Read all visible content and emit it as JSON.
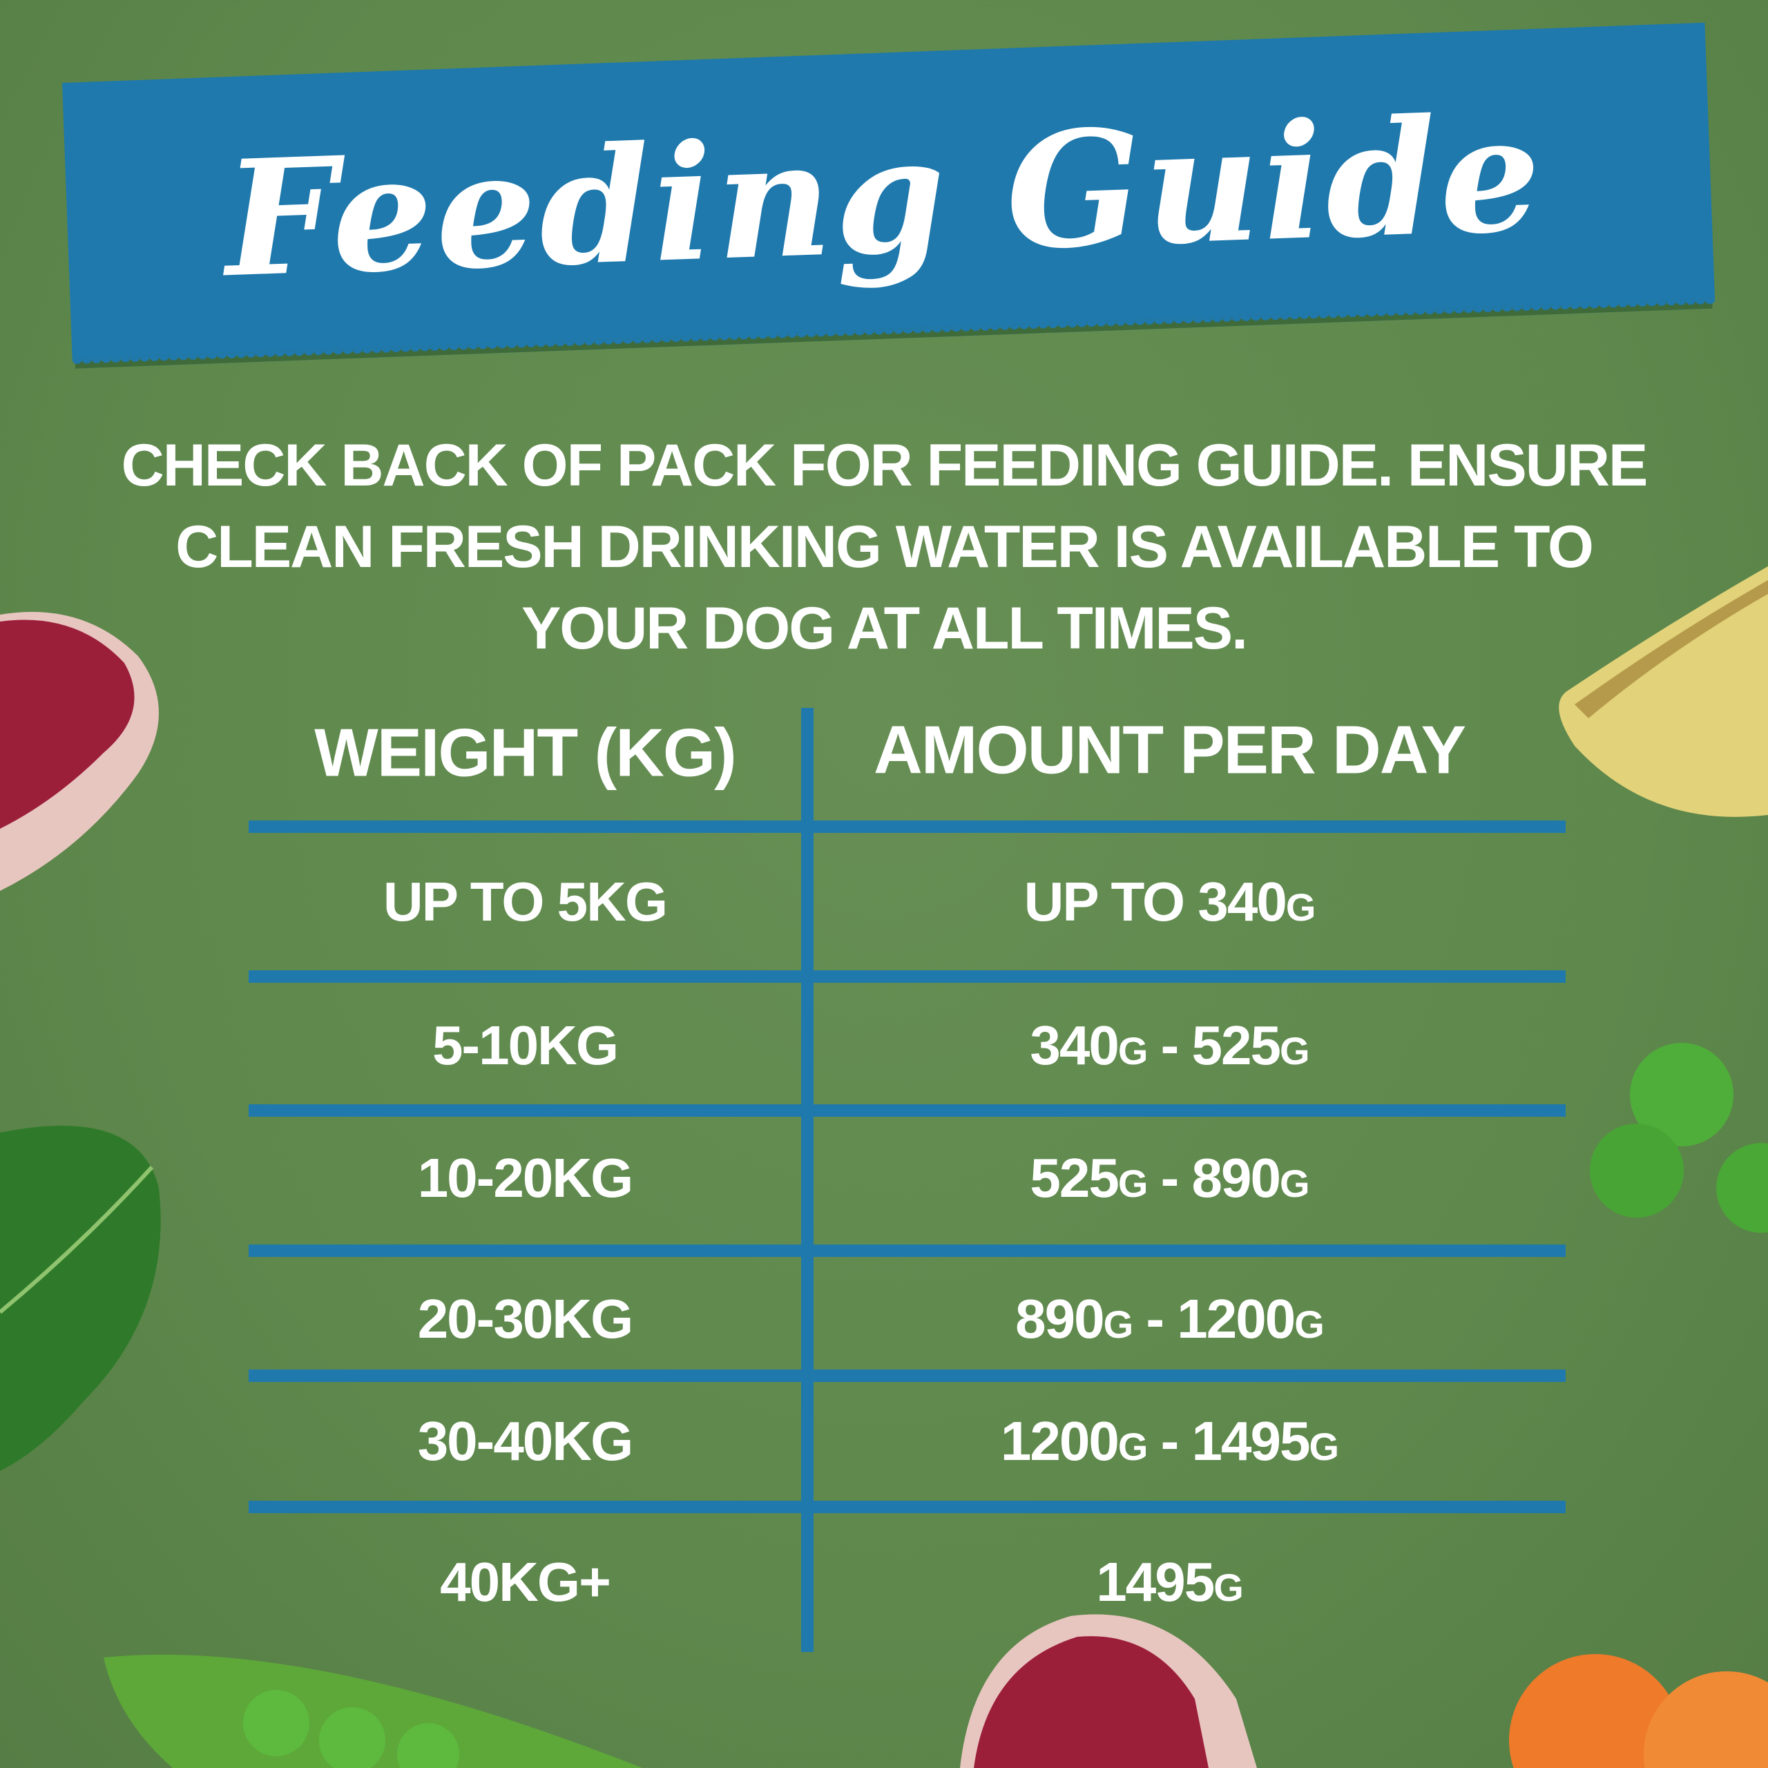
{
  "title": "Feeding Guide",
  "intro_lines": [
    "CHECK BACK OF PACK FOR FEEDING GUIDE. ENSURE",
    "CLEAN FRESH DRINKING WATER IS AVAILABLE TO",
    "YOUR DOG AT ALL TIMES."
  ],
  "table": {
    "headers": [
      "WEIGHT (KG)",
      "AMOUNT PER DAY"
    ],
    "rows": [
      {
        "weight": "UP TO 5KG",
        "amount": "UP TO 340g"
      },
      {
        "weight": "5-10KG",
        "amount": "340g - 525g"
      },
      {
        "weight": "10-20KG",
        "amount": "525g - 890g"
      },
      {
        "weight": "20-30KG",
        "amount": "890g - 1200g"
      },
      {
        "weight": "30-40KG",
        "amount": "1200g - 1495g"
      },
      {
        "weight": "40KG+",
        "amount": "1495g"
      }
    ]
  },
  "colors": {
    "background": "#5e884c",
    "accent_blue": "#1f79ad",
    "text": "#ffffff"
  },
  "decorations": [
    "duck-meat-icon",
    "potato-icon",
    "peas-icon",
    "spinach-leaf-icon",
    "pea-pod-icon",
    "carrot-slices-icon"
  ]
}
